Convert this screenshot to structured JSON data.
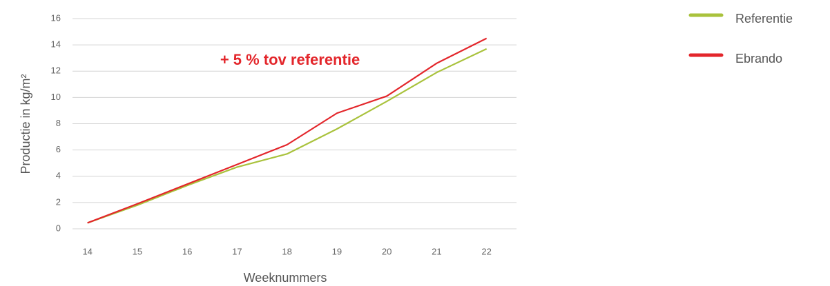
{
  "chart_data": {
    "type": "line",
    "annotation": "+ 5 % tov referentie",
    "x_label": "Weeknummers",
    "y_label": "Productie in kg/m²",
    "x": [
      14,
      15,
      16,
      17,
      18,
      19,
      20,
      21,
      22
    ],
    "series": [
      {
        "name": "Referentie",
        "color": "#a9c23c",
        "values": [
          0.45,
          1.8,
          3.3,
          4.7,
          5.7,
          7.6,
          9.7,
          11.9,
          13.7
        ]
      },
      {
        "name": "Ebrando",
        "color": "#e3262b",
        "values": [
          0.45,
          1.9,
          3.4,
          4.9,
          6.4,
          8.8,
          10.1,
          12.6,
          14.5
        ]
      }
    ],
    "xlim": [
      13.7,
      22.6
    ],
    "xticks": [
      14,
      15,
      16,
      17,
      18,
      19,
      20,
      21,
      22
    ],
    "ylim": [
      0,
      16
    ],
    "yticks": [
      0,
      2,
      4,
      6,
      8,
      10,
      12,
      14,
      16
    ],
    "grid": true,
    "legend": "right"
  }
}
